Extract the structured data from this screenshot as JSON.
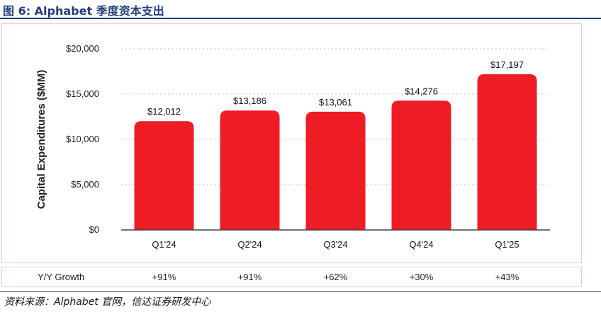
{
  "figure": {
    "title": "图 6:  Alphabet 季度资本支出",
    "source": "资料来源：Alphabet 官网，信达证券研发中心"
  },
  "colors": {
    "bar": "#ee1c25",
    "title": "#1f3e7a",
    "border": "#f4c9c2"
  },
  "chart_data": {
    "type": "bar",
    "title": "",
    "xlabel": "",
    "ylabel": "Capital Expenditures ($MM)",
    "categories": [
      "Q1'24",
      "Q2'24",
      "Q3'24",
      "Q4'24",
      "Q1'25"
    ],
    "values": [
      12012,
      13186,
      13061,
      14276,
      17197
    ],
    "data_labels": [
      "$12,012",
      "$13,186",
      "$13,061",
      "$14,276",
      "$17,197"
    ],
    "ylim": [
      0,
      20000
    ],
    "yticks": [
      0,
      5000,
      10000,
      15000,
      20000
    ],
    "ytick_labels": [
      "$0",
      "$5,000",
      "$10,000",
      "$15,000",
      "$20,000"
    ],
    "grid": "horizontal dotted",
    "legend": "none"
  },
  "growth_row": {
    "label": "Y/Y Growth",
    "values": [
      "+91%",
      "+91%",
      "+62%",
      "+30%",
      "+43%"
    ]
  }
}
